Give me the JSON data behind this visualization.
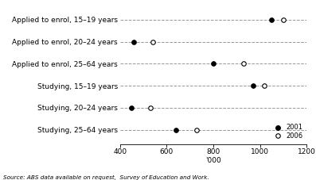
{
  "categories": [
    "Applied to enrol, 15–19 years",
    "Applied to enrol, 20–24 years",
    "Applied to enrol, 25–64 years",
    "Studying, 15–19 years",
    "Studying, 20–24 years",
    "Studying, 25–64 years"
  ],
  "values_2001": [
    1050,
    460,
    800,
    970,
    450,
    640
  ],
  "values_2006": [
    1100,
    540,
    930,
    1020,
    530,
    730
  ],
  "xlabel": "'000",
  "xlim": [
    400,
    1200
  ],
  "xticks": [
    400,
    600,
    800,
    1000,
    1200
  ],
  "legend_2001": "2001",
  "legend_2006": "2006",
  "source_text": "Source: ABS data available on request,  Survey of Education and Work.",
  "marker_filled": "o",
  "marker_open": "o",
  "color_filled": "black",
  "color_open": "white",
  "marker_size": 4,
  "line_color": "#999999",
  "line_style": "--",
  "line_width": 0.7
}
